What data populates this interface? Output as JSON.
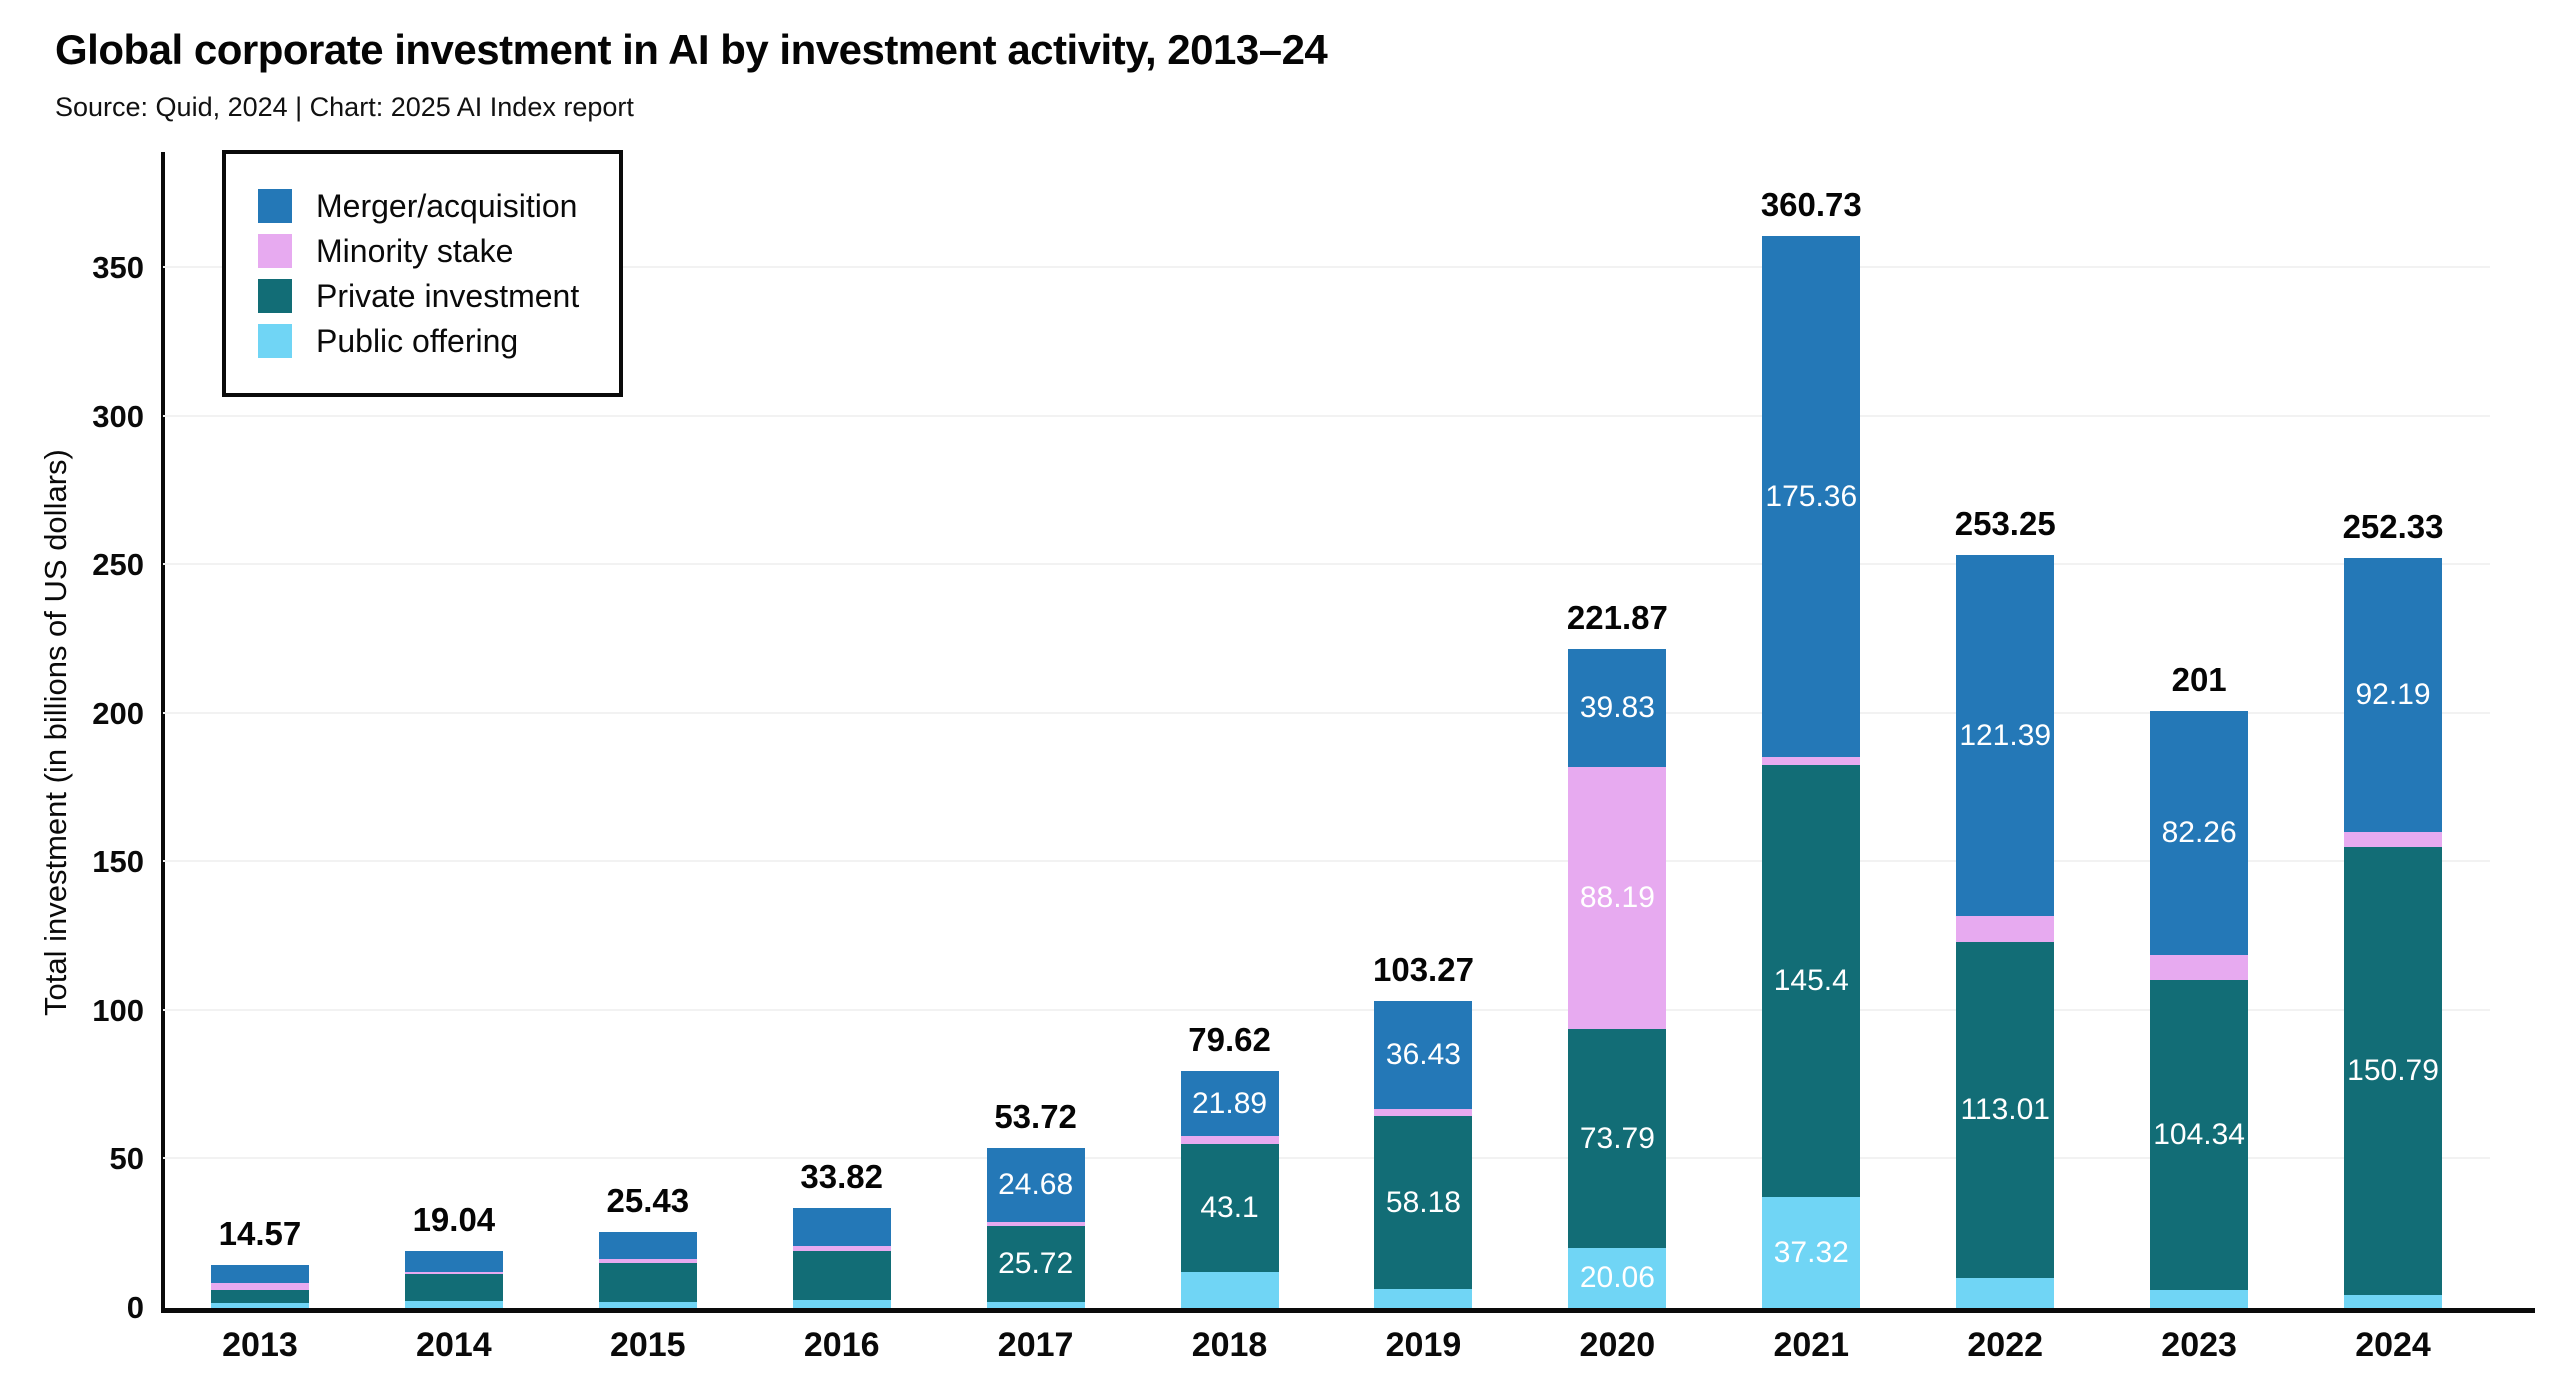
{
  "header": {
    "title": "Global corporate investment in AI by investment activity, 2013–24",
    "source": "Source: Quid, 2024 | Chart: 2025 AI Index report"
  },
  "colors": {
    "merger": "#2478b7",
    "minority": "#e7aaf0",
    "private": "#126d76",
    "public": "#70d5f5",
    "grid": "#f2f2f2",
    "axis": "#0a0a0a",
    "total_label": "#050505",
    "segment_label": "#ffffff"
  },
  "legend": {
    "items": [
      {
        "label": "Merger/acquisition",
        "key": "merger"
      },
      {
        "label": "Minority stake",
        "key": "minority"
      },
      {
        "label": "Private investment",
        "key": "private"
      },
      {
        "label": "Public offering",
        "key": "public"
      }
    ]
  },
  "y_axis": {
    "label": "Total investment (in billions of US dollars)",
    "ticks": [
      0,
      50,
      100,
      150,
      200,
      250,
      300,
      350
    ],
    "max": 350
  },
  "chart_data": {
    "type": "bar",
    "stacked": true,
    "title": "Global corporate investment in AI by investment activity, 2013–24",
    "xlabel": "",
    "ylabel": "Total investment (in billions of US dollars)",
    "ylim": [
      0,
      387
    ],
    "grid": true,
    "legend_position": "top-left",
    "categories": [
      "2013",
      "2014",
      "2015",
      "2016",
      "2017",
      "2018",
      "2019",
      "2020",
      "2021",
      "2022",
      "2023",
      "2024"
    ],
    "totals": [
      14.57,
      19.04,
      25.43,
      33.82,
      53.72,
      79.62,
      103.27,
      221.87,
      360.73,
      253.25,
      201,
      252.33
    ],
    "total_labels": [
      "14.57",
      "19.04",
      "25.43",
      "33.82",
      "53.72",
      "79.62",
      "103.27",
      "221.87",
      "360.73",
      "253.25",
      "201",
      "252.33"
    ],
    "series": [
      {
        "name": "Public offering",
        "key": "public",
        "values": [
          1.6,
          2.4,
          1.9,
          2.75,
          2.0,
          12.19,
          6.35,
          20.06,
          37.32,
          10.0,
          6.0,
          4.5
        ],
        "value_labels": [
          null,
          null,
          null,
          null,
          null,
          null,
          null,
          "20.06",
          "37.32",
          null,
          null,
          null
        ]
      },
      {
        "name": "Private investment",
        "key": "private",
        "values": [
          4.5,
          9.2,
          13.2,
          16.3,
          25.72,
          43.1,
          58.18,
          73.79,
          145.4,
          113.01,
          104.34,
          150.79
        ],
        "value_labels": [
          null,
          null,
          null,
          null,
          "25.72",
          "43.1",
          "58.18",
          "73.79",
          "145.4",
          "113.01",
          "104.34",
          "150.79"
        ]
      },
      {
        "name": "Minority stake",
        "key": "minority",
        "values": [
          2.2,
          0.55,
          1.45,
          1.9,
          1.32,
          2.44,
          2.31,
          88.19,
          2.65,
          8.85,
          8.4,
          4.85
        ],
        "value_labels": [
          null,
          null,
          null,
          null,
          null,
          null,
          null,
          "88.19",
          null,
          null,
          null,
          null
        ]
      },
      {
        "name": "Merger/acquisition",
        "key": "merger",
        "values": [
          6.27,
          6.89,
          8.88,
          12.87,
          24.68,
          21.89,
          36.43,
          39.83,
          175.36,
          121.39,
          82.26,
          92.19
        ],
        "value_labels": [
          null,
          null,
          null,
          null,
          "24.68",
          "21.89",
          "36.43",
          "39.83",
          "175.36",
          "121.39",
          "82.26",
          "92.19"
        ]
      }
    ]
  }
}
